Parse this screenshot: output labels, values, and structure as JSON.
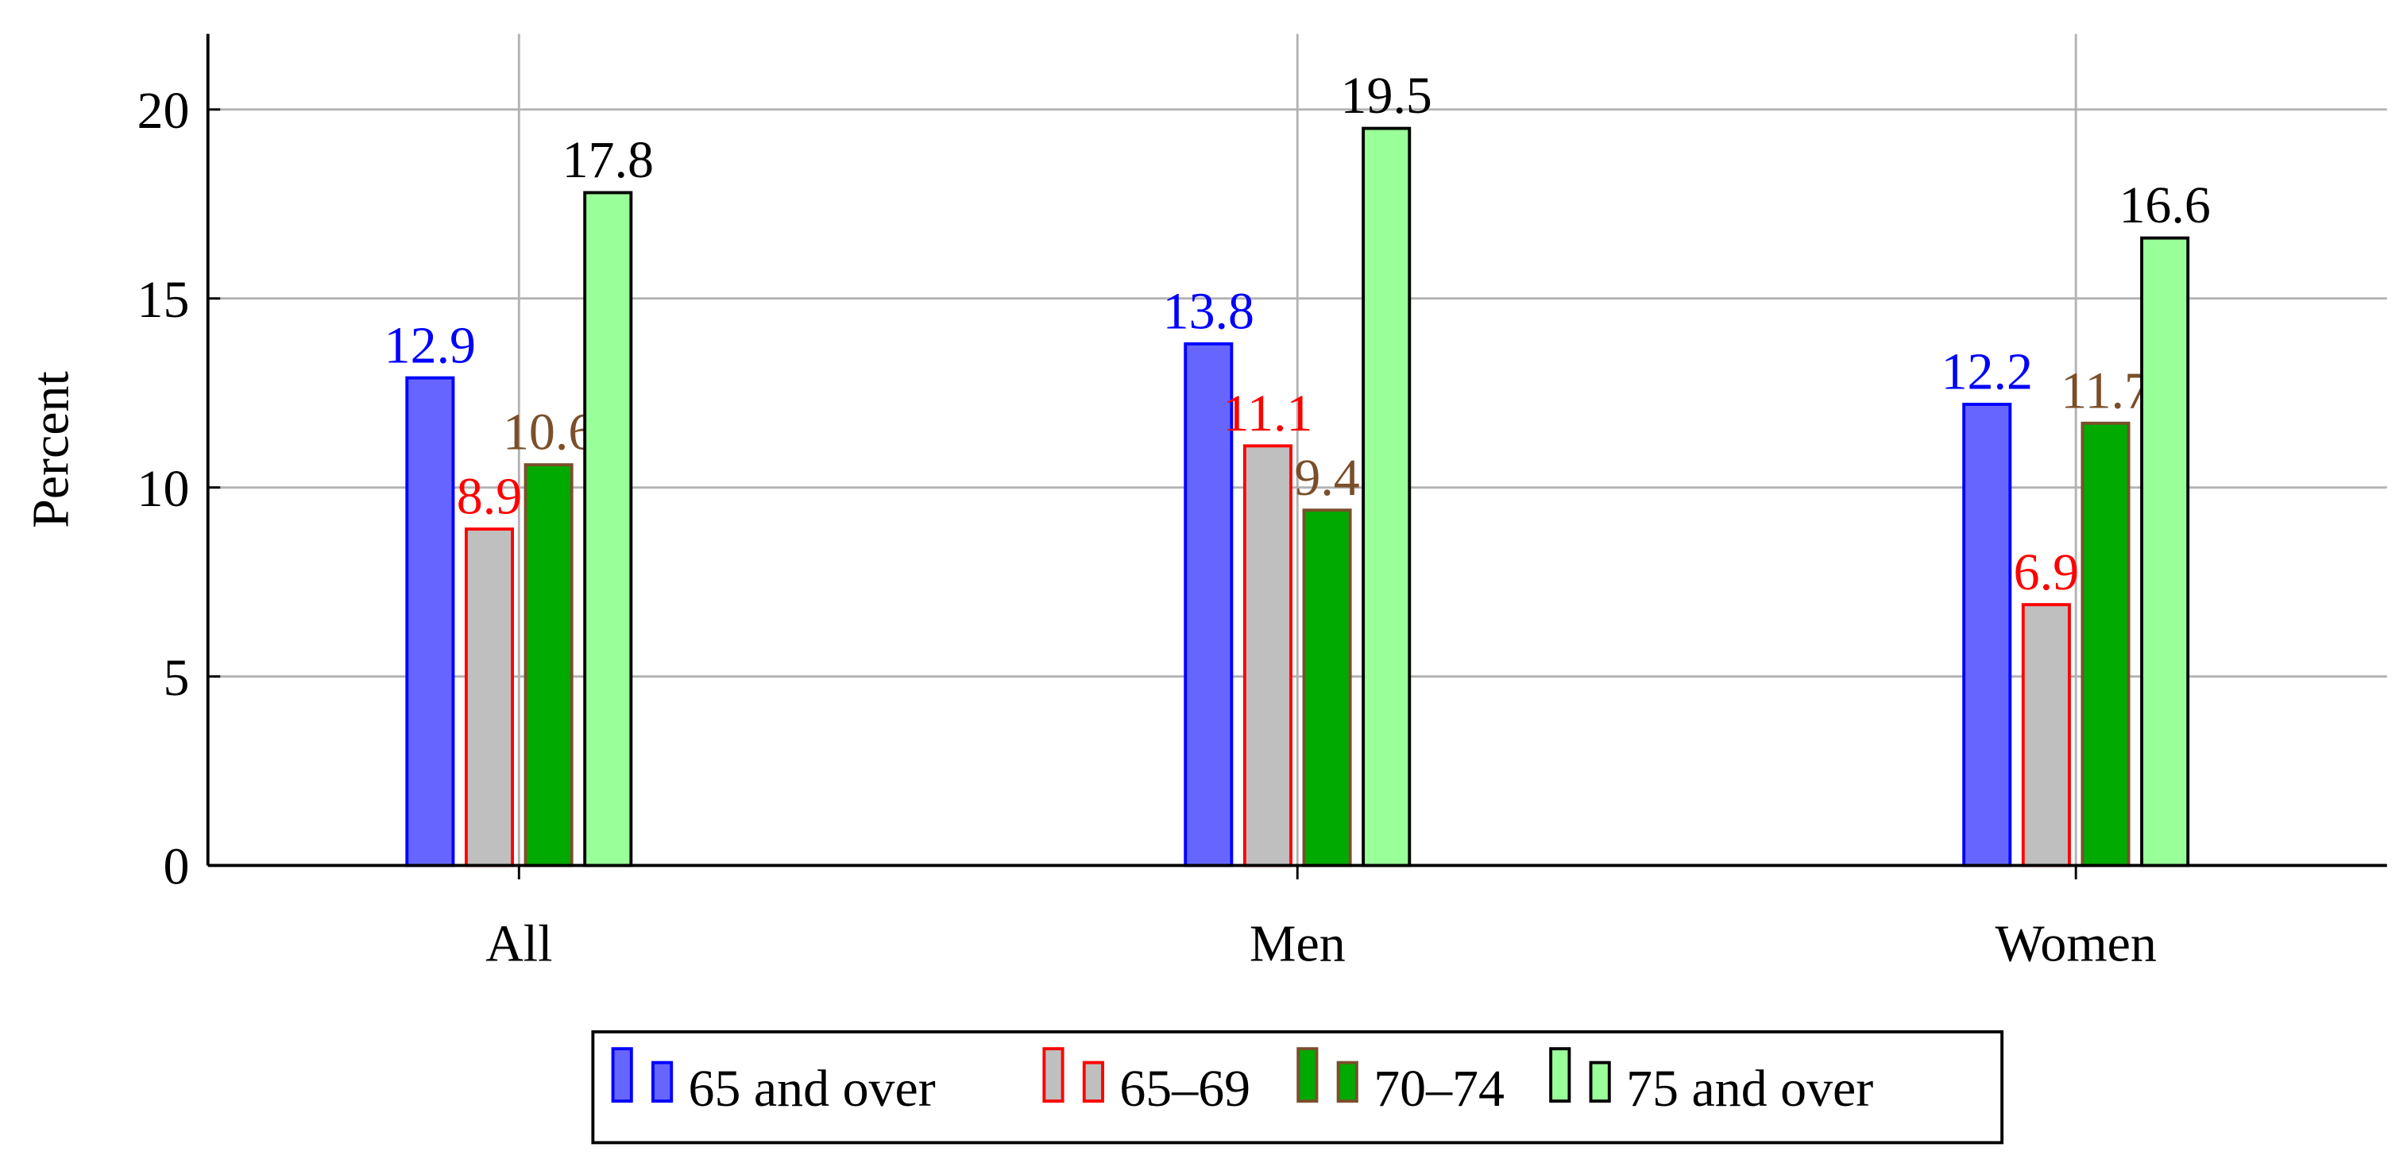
{
  "chart_data": {
    "type": "bar",
    "y_label": "Percent",
    "categories": [
      "All",
      "Men",
      "Women"
    ],
    "series": [
      {
        "name": "65 and over",
        "color": "#6666ff",
        "edgecolor": "#0000ff",
        "values": [
          12.9,
          13.8,
          12.2
        ]
      },
      {
        "name": "65–69",
        "color": "#bfbfbf",
        "edgecolor": "#ff0000",
        "values": [
          8.9,
          11.1,
          6.9
        ]
      },
      {
        "name": "70–74",
        "color": "#00aa00",
        "edgecolor": "#7a4f2a",
        "values": [
          10.6,
          9.4,
          11.7
        ]
      },
      {
        "name": "75 and over",
        "color": "#99ff99",
        "edgecolor": "#000000",
        "values": [
          17.8,
          19.5,
          16.6
        ]
      }
    ],
    "ylim": [
      0,
      22
    ],
    "yticks": [
      0,
      5,
      10,
      15,
      20
    ],
    "grid": true,
    "legend": "bottom"
  }
}
